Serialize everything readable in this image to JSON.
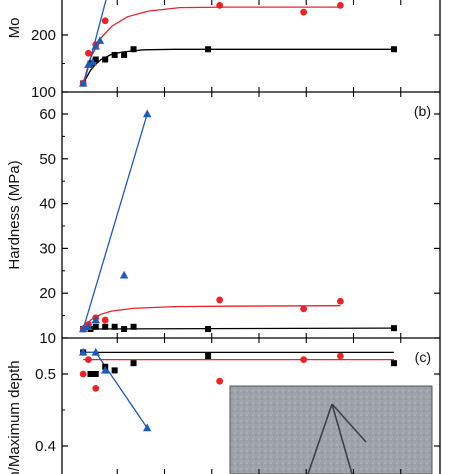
{
  "chart_data": [
    {
      "id": "a",
      "type": "scatter",
      "ylabel": "Mo",
      "yticks": [
        100,
        200
      ],
      "ylim": [
        100,
        340
      ],
      "xlim": [
        0,
        40
      ],
      "series": [
        {
          "marker": "square",
          "color": "#000000",
          "points": [
            [
              0.3,
              115
            ],
            [
              1.0,
              150
            ],
            [
              1.5,
              157
            ],
            [
              2.4,
              157
            ],
            [
              3.3,
              165
            ],
            [
              4.2,
              165
            ],
            [
              5.1,
              175
            ],
            [
              12.2,
              175
            ],
            [
              29.9,
              175
            ]
          ],
          "fit": [
            [
              0.3,
              115
            ],
            [
              1.0,
              138
            ],
            [
              1.5,
              149
            ],
            [
              2.0,
              157
            ],
            [
              3.0,
              166
            ],
            [
              4.0,
              170
            ],
            [
              6.0,
              174
            ],
            [
              9.0,
              175
            ],
            [
              29.9,
              175
            ]
          ]
        },
        {
          "marker": "circle",
          "color": "#e8232a",
          "points": [
            [
              0.3,
              115
            ],
            [
              0.8,
              168
            ],
            [
              1.5,
              183
            ],
            [
              2.4,
              225
            ],
            [
              13.3,
              252
            ],
            [
              21.3,
              240
            ],
            [
              24.8,
              252
            ]
          ],
          "fit": [
            [
              0.3,
              115
            ],
            [
              1.0,
              160
            ],
            [
              2.0,
              195
            ],
            [
              3.0,
              215
            ],
            [
              4.5,
              232
            ],
            [
              6.5,
              242
            ],
            [
              9.5,
              248
            ],
            [
              14.0,
              249
            ],
            [
              24.8,
              249
            ]
          ]
        },
        {
          "marker": "triangle",
          "color": "#1f5ab4",
          "points": [
            [
              0.3,
              115
            ],
            [
              0.8,
              148
            ],
            [
              1.2,
              152
            ],
            [
              1.5,
              180
            ],
            [
              1.9,
              190
            ]
          ],
          "fit": [
            [
              0.3,
              110
            ],
            [
              3.6,
              340
            ]
          ]
        }
      ]
    },
    {
      "id": "b",
      "type": "scatter",
      "ylabel": "Hardness (MPa)",
      "panel_label": "(b)",
      "yticks": [
        10,
        20,
        30,
        40,
        50,
        60
      ],
      "ylim": [
        10,
        65
      ],
      "xlim": [
        0,
        40
      ],
      "series": [
        {
          "marker": "square",
          "color": "#000000",
          "points": [
            [
              0.3,
              12
            ],
            [
              1.0,
              12
            ],
            [
              1.5,
              12.5
            ],
            [
              2.4,
              12.5
            ],
            [
              3.3,
              12.5
            ],
            [
              4.2,
              12
            ],
            [
              5.1,
              12.5
            ],
            [
              12.2,
              12
            ],
            [
              29.9,
              12.2
            ]
          ],
          "fit": [
            [
              0.3,
              12
            ],
            [
              29.9,
              12.2
            ]
          ]
        },
        {
          "marker": "circle",
          "color": "#e8232a",
          "points": [
            [
              0.3,
              12
            ],
            [
              0.8,
              13
            ],
            [
              1.5,
              14.5
            ],
            [
              2.4,
              14
            ],
            [
              13.3,
              18.5
            ],
            [
              21.3,
              16.5
            ],
            [
              24.8,
              18.2
            ]
          ],
          "fit": [
            [
              0.3,
              12
            ],
            [
              1.0,
              14
            ],
            [
              2.0,
              15.3
            ],
            [
              3.0,
              16
            ],
            [
              5.0,
              16.6
            ],
            [
              9.0,
              17
            ],
            [
              14.0,
              17.1
            ],
            [
              24.8,
              17.2
            ]
          ]
        },
        {
          "marker": "triangle",
          "color": "#1f5ab4",
          "points": [
            [
              0.3,
              12
            ],
            [
              0.8,
              12.5
            ],
            [
              1.5,
              14
            ],
            [
              4.2,
              24
            ],
            [
              6.4,
              60
            ]
          ],
          "fit": [
            [
              0.3,
              12
            ],
            [
              6.4,
              60
            ]
          ]
        }
      ]
    },
    {
      "id": "c",
      "type": "scatter",
      "ylabel": "h/Maximum depth",
      "panel_label": "(c)",
      "yticks": [
        0.4,
        0.5
      ],
      "ylim": [
        0.34,
        0.54
      ],
      "xlim": [
        0,
        40
      ],
      "inset_photo": true,
      "series": [
        {
          "marker": "square",
          "color": "#000000",
          "points": [
            [
              0.3,
              0.53
            ],
            [
              1.0,
              0.5
            ],
            [
              1.5,
              0.5
            ],
            [
              2.4,
              0.51
            ],
            [
              3.3,
              0.505
            ],
            [
              5.1,
              0.515
            ],
            [
              12.2,
              0.525
            ],
            [
              29.9,
              0.515
            ]
          ],
          "fit": [
            [
              0.3,
              0.53
            ],
            [
              29.9,
              0.53
            ]
          ]
        },
        {
          "marker": "circle",
          "color": "#e8232a",
          "points": [
            [
              0.3,
              0.5
            ],
            [
              0.8,
              0.52
            ],
            [
              1.5,
              0.48
            ],
            [
              13.3,
              0.49
            ],
            [
              21.3,
              0.52
            ],
            [
              24.8,
              0.525
            ]
          ],
          "fit": [
            [
              0.3,
              0.52
            ],
            [
              29.9,
              0.52
            ]
          ]
        },
        {
          "marker": "triangle",
          "color": "#1f5ab4",
          "points": [
            [
              0.3,
              0.53
            ],
            [
              1.5,
              0.53
            ],
            [
              2.4,
              0.505
            ],
            [
              6.4,
              0.425
            ]
          ],
          "fit": [
            [
              0.3,
              0.53
            ],
            [
              1.5,
              0.53
            ],
            [
              6.4,
              0.425
            ]
          ]
        }
      ]
    }
  ]
}
